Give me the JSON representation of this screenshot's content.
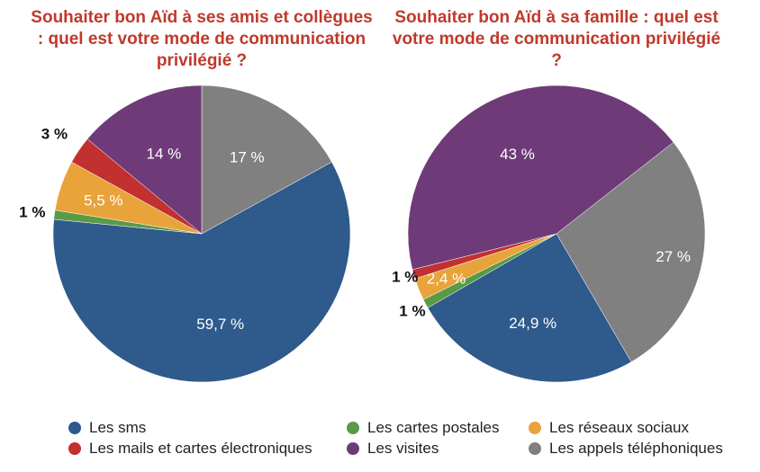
{
  "chart_data": [
    {
      "type": "pie",
      "title": "Souhaiter bon Aïd à ses amis et collègues : quel est votre mode de communication privilégié ?",
      "slices": [
        {
          "name": "Les appels téléphoniques",
          "value": 17,
          "label": "17 %"
        },
        {
          "name": "Les sms",
          "value": 59.7,
          "label": "59,7 %"
        },
        {
          "name": "Les cartes postales",
          "value": 1,
          "label": "1 %"
        },
        {
          "name": "Les réseaux sociaux",
          "value": 5.5,
          "label": "5,5 %"
        },
        {
          "name": "Les mails et cartes électroniques",
          "value": 3,
          "label": "3 %"
        },
        {
          "name": "Les visites",
          "value": 14,
          "label": "14 %"
        }
      ]
    },
    {
      "type": "pie",
      "title": "Souhaiter bon Aïd à sa famille : quel est votre mode de communication privilégié ?",
      "slices": [
        {
          "name": "Les appels téléphoniques",
          "value": 27,
          "label": "27 %"
        },
        {
          "name": "Les sms",
          "value": 24.9,
          "label": "24,9 %"
        },
        {
          "name": "Les cartes postales",
          "value": 1,
          "label": "1 %"
        },
        {
          "name": "Les réseaux sociaux",
          "value": 2.4,
          "label": "2,4 %"
        },
        {
          "name": "Les mails et cartes électroniques",
          "value": 1,
          "label": "1 %"
        },
        {
          "name": "Les visites",
          "value": 43,
          "label": "43 %"
        }
      ]
    }
  ],
  "legend": [
    {
      "name": "Les sms",
      "color": "#2e5a8c"
    },
    {
      "name": "Les cartes postales",
      "color": "#5a9a46"
    },
    {
      "name": "Les réseaux sociaux",
      "color": "#e8a33b"
    },
    {
      "name": "Les mails et cartes électroniques",
      "color": "#c23030"
    },
    {
      "name": "Les visites",
      "color": "#6e3b78"
    },
    {
      "name": "Les appels téléphoniques",
      "color": "#808080"
    }
  ],
  "legend_placement": "bottom"
}
